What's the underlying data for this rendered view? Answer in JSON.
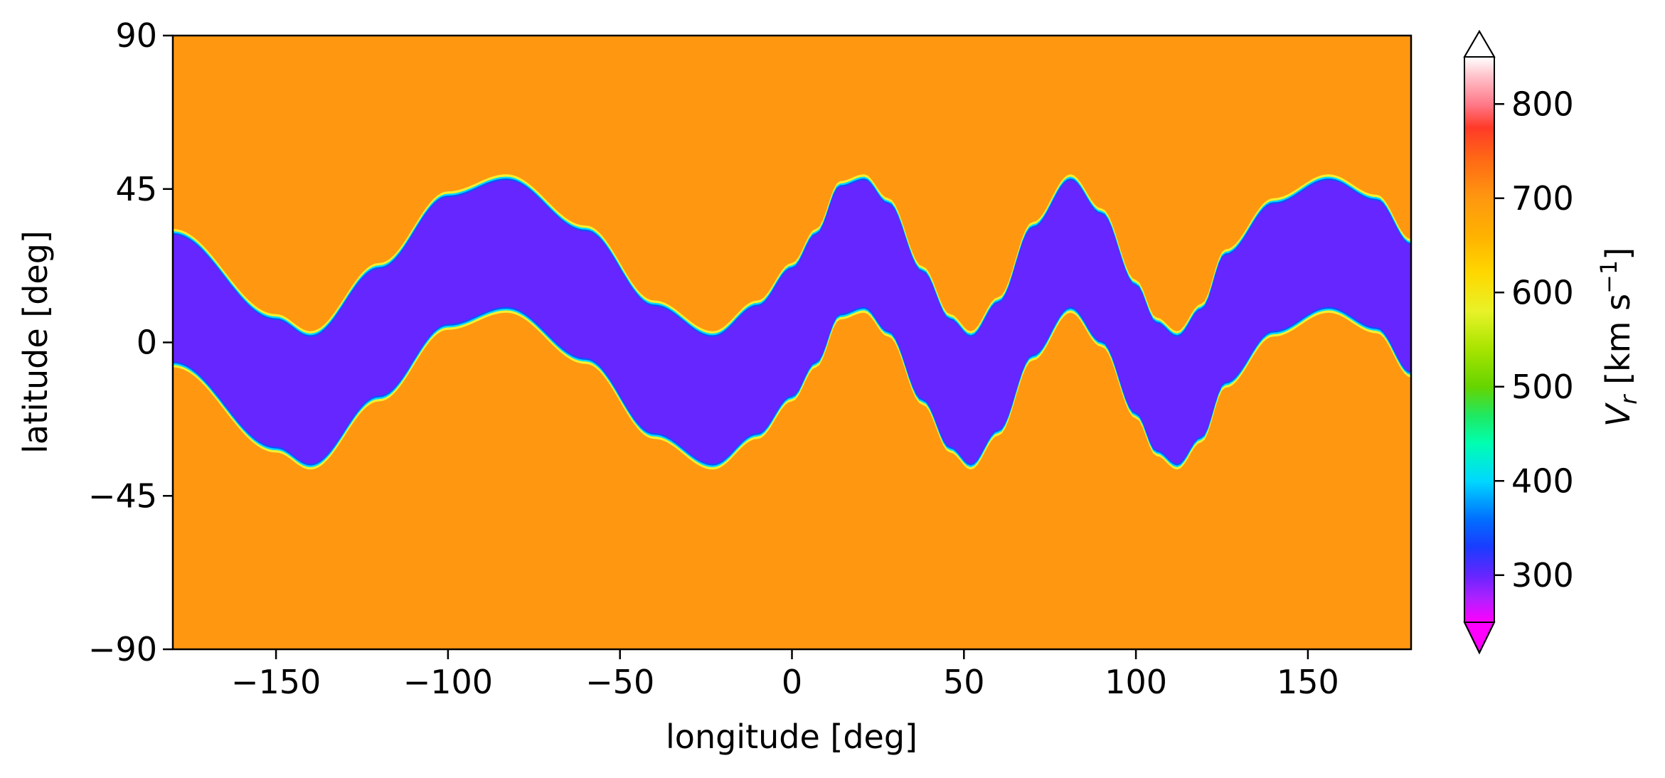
{
  "chart_data": {
    "type": "heatmap",
    "title": "",
    "xlabel": "longitude [deg]",
    "ylabel": "latitude [deg]",
    "xlim": [
      -180,
      180
    ],
    "ylim": [
      -90,
      90
    ],
    "xticks": [
      -150,
      -100,
      -50,
      0,
      50,
      100,
      150
    ],
    "xtick_labels": [
      "−150",
      "−100",
      "−50",
      "0",
      "50",
      "100",
      "150"
    ],
    "yticks": [
      90,
      45,
      0,
      -45,
      -90
    ],
    "ytick_labels": [
      "90",
      "45",
      "0",
      "−45",
      "−90"
    ],
    "background_value": 700,
    "band_value": 300,
    "band_center_line": {
      "longitude": [
        -180,
        -150,
        -140,
        -120,
        -100,
        -83,
        -60,
        -40,
        -23,
        -10,
        0,
        7,
        14,
        21,
        28,
        38,
        46,
        52,
        60,
        70,
        81,
        90,
        100,
        106,
        112,
        119,
        126,
        140,
        156,
        170,
        180
      ],
      "latitude": [
        13,
        -12,
        -17,
        3,
        24,
        29,
        14,
        -8,
        -17,
        -8,
        3,
        13,
        27,
        29,
        22,
        2,
        -12,
        -17,
        -7,
        15,
        29,
        19,
        -2,
        -13,
        -17,
        -9,
        7,
        22,
        29,
        23,
        10
      ]
    },
    "band_half_width_deg": 19,
    "colorbar": {
      "label": "V",
      "label_sub": "r",
      "label_units": " [km s",
      "label_sup": "−1",
      "label_close": "]",
      "ticks": [
        300,
        400,
        500,
        600,
        700,
        800
      ],
      "range": [
        250,
        850
      ],
      "extend": "both",
      "colormap": "gist_ncar"
    },
    "colors": {
      "background": "#ff9810",
      "band": "#6526ff",
      "edge_yellow": "#f4f030",
      "edge_cyan": "#00d8ff",
      "edge_blue": "#0a55ff"
    }
  }
}
